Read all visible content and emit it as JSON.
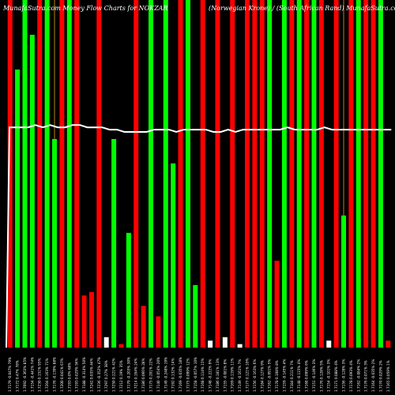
{
  "chart_data": {
    "type": "bar",
    "title_left": "MunafaSutra.com Money Flow Charts for NOKZAR",
    "title_right": "(Norwegian Krone) / (South African Rand) MunafaSutra.com",
    "series": [
      {
        "values": [
          100,
          80,
          100,
          90,
          100,
          100,
          60,
          100,
          100,
          100,
          15,
          16,
          100,
          3,
          60,
          1,
          33,
          100,
          12,
          100,
          9,
          100,
          53,
          100,
          100,
          18,
          100,
          2,
          100,
          3,
          100,
          1,
          100,
          100,
          100,
          100,
          25,
          100,
          100,
          100,
          100,
          100,
          100,
          2,
          100,
          38,
          100,
          100,
          100,
          100,
          100,
          2
        ]
      }
    ],
    "bar_colors": [
      "red",
      "lime",
      "lime",
      "lime",
      "red",
      "lime",
      "lime",
      "red",
      "lime",
      "red",
      "red",
      "red",
      "red",
      "lime",
      "lime",
      "red",
      "lime",
      "red",
      "red",
      "lime",
      "red",
      "lime",
      "lime",
      "red",
      "lime",
      "lime",
      "red",
      "lime",
      "red",
      "lime",
      "red",
      "lime",
      "red",
      "red",
      "red",
      "lime",
      "red",
      "lime",
      "red",
      "lime",
      "red",
      "lime",
      "red",
      "lime",
      "red",
      "lime",
      "red",
      "lime",
      "red",
      "red",
      "lime",
      "red"
    ],
    "highlighted_columns": [
      0,
      6,
      19,
      26,
      33,
      40,
      45,
      50
    ],
    "line_values": [
      96,
      96,
      96,
      97,
      96,
      97,
      96,
      96,
      97,
      97,
      96,
      96,
      96,
      95,
      95,
      94,
      94,
      94,
      94,
      95,
      95,
      95,
      94,
      95,
      95,
      95,
      95,
      94,
      94,
      95,
      94,
      95,
      95,
      95,
      95,
      95,
      95,
      96,
      95,
      95,
      95,
      95,
      96,
      95,
      95,
      95,
      95,
      95,
      95,
      95,
      95,
      95
    ],
    "ylim": [
      0,
      100
    ],
    "x_tick_labels": [
      "1.7179 -0.047% 79%",
      "1.7172 0.47% 78%",
      "1.7092 -0.363% 85%",
      "1.7154 -0.441% 74%",
      "1.7230 0.151% 93%",
      "1.7204 0.163% 71%",
      "1.7176 -0.139% 88%",
      "1.7200 0.041% 67%",
      "1.7193 0.0% 60%",
      "1.7193 0.029% 56%",
      "1.7188 -0.314% 50%",
      "1.7242 0.035% 44%",
      "1.7236 -0.352% 47%",
      "1.7297 0.27% 38%",
      "1.7250 0.221% 42%",
      "1.7212 0.19% 35%",
      "1.7179 -0.203% 30%",
      "1.7214 0.164% 24%",
      "1.7186 0.066% 28%",
      "1.7175 0.201% 22%",
      "1.7140 -0.054% 20%",
      "1.7149 -0.248% 19%",
      "1.7192 0.132% 14%",
      "1.7169 -0.035% 18%",
      "1.7175 0.099% 12%",
      "1.7158 -0.057% 10%",
      "1.7168 0.114% 15%",
      "1.7148 -0.222% 9%",
      "1.7186 0.181% 13%",
      "1.7155 -0.081% 8%",
      "1.7169 0.119% 11%",
      "1.7149 -0.161% 7%",
      "1.7177 0.121% 10%",
      "1.7156 -0.163% 6%",
      "1.7184 0.127% 9%",
      "1.7162 -0.091% 5%",
      "1.7178 0.108% 8%",
      "1.7159 -0.145% 4%",
      "1.7184 0.211% 7%",
      "1.7148 -0.115% 4%",
      "1.7168 0.099% 6%",
      "1.7151 -0.146% 3%",
      "1.7176 0.128% 5%",
      "1.7154 -0.101% 3%",
      "1.7171 0.088% 4%",
      "1.7156 -0.128% 3%",
      "1.7178 0.093% 4%",
      "1.7162 -0.084% 2%",
      "1.7176 0.071% 3%",
      "1.7164 -0.035% 2%",
      "1.7170 0.029% 2%",
      "1.7165 0.059% 1%"
    ]
  }
}
